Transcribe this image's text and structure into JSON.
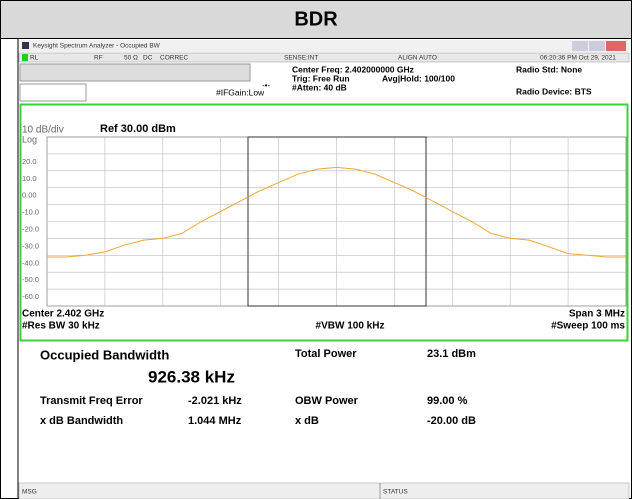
{
  "header": {
    "title": "BDR"
  },
  "window": {
    "title": "Keysight Spectrum Analyzer - Occupied BW"
  },
  "status_row": [
    "RL",
    "RF",
    "50 Ω",
    "DC",
    "CORREC",
    "SENSE:INT",
    "ALIGN AUTO",
    "06:20:36 PM Oct 29, 2021"
  ],
  "settings": {
    "center_freq": "Center Freq: 2.402000000 GHz",
    "trig": "Trig: Free Run",
    "avg_hold": "Avg|Hold: 100/100",
    "atten": "#Atten: 40 dB",
    "ifgain": "#IFGain:Low",
    "radio_std": "Radio Std: None",
    "radio_device": "Radio Device: BTS"
  },
  "chart_data": {
    "type": "line",
    "scale": "10 dB/div",
    "reference": "Ref 30.00 dBm",
    "scale_type": "Log",
    "center": "Center 2.402 GHz",
    "span": "Span 3 MHz",
    "res_bw": "#Res BW 30 kHz",
    "vbw": "#VBW 100 kHz",
    "sweep": "#Sweep 100 ms",
    "x": [
      2.4005,
      2.4006,
      2.4007,
      2.4008,
      2.4009,
      2.401,
      2.4011,
      2.4012,
      2.4013,
      2.4014,
      2.4015,
      2.4016,
      2.4017,
      2.4018,
      2.4019,
      2.402,
      2.4021,
      2.4022,
      2.4023,
      2.4024,
      2.4025,
      2.4026,
      2.4027,
      2.4028,
      2.4029,
      2.403,
      2.4031,
      2.4032,
      2.4033,
      2.4034,
      2.4035
    ],
    "series": [
      {
        "name": "Trace 1",
        "color": "#eba73a",
        "values": [
          -41,
          -41,
          -40,
          -38,
          -34,
          -31,
          -30,
          -27,
          -20,
          -14,
          -8,
          -2,
          3,
          8,
          11,
          12,
          11,
          8,
          3,
          -2,
          -8,
          -14,
          -20,
          -27,
          -30,
          -31,
          -35,
          -39,
          -40,
          -41,
          -41
        ]
      }
    ],
    "xlim": [
      2.4005,
      2.4035
    ],
    "ylim": [
      -70,
      30
    ],
    "yticks": [
      {
        "value": 20,
        "label": "20.0"
      },
      {
        "value": 10,
        "label": "10.0"
      },
      {
        "value": 0,
        "label": "0.00"
      },
      {
        "value": -10,
        "label": "-10.0"
      },
      {
        "value": -20,
        "label": "-20.0"
      },
      {
        "value": -30,
        "label": "-30.0"
      },
      {
        "value": -40,
        "label": "-40.0"
      },
      {
        "value": -50,
        "label": "-50.0"
      },
      {
        "value": -60,
        "label": "-60.0"
      }
    ],
    "grid": true
  },
  "results": {
    "occupied_bandwidth": {
      "label": "Occupied Bandwidth",
      "value": "926.38 kHz"
    },
    "total_power": {
      "label": "Total Power",
      "value": "23.1 dBm"
    },
    "freq_error": {
      "label": "Transmit Freq Error",
      "value": "-2.021 kHz"
    },
    "obw_power": {
      "label": "OBW Power",
      "value": "99.00 %"
    },
    "xdb_bandwidth": {
      "label": "x dB Bandwidth",
      "value": "1.044 MHz"
    },
    "xdb": {
      "label": "x dB",
      "value": "-20.00 dB"
    }
  },
  "status_bar": [
    "MSG",
    "STATUS"
  ]
}
